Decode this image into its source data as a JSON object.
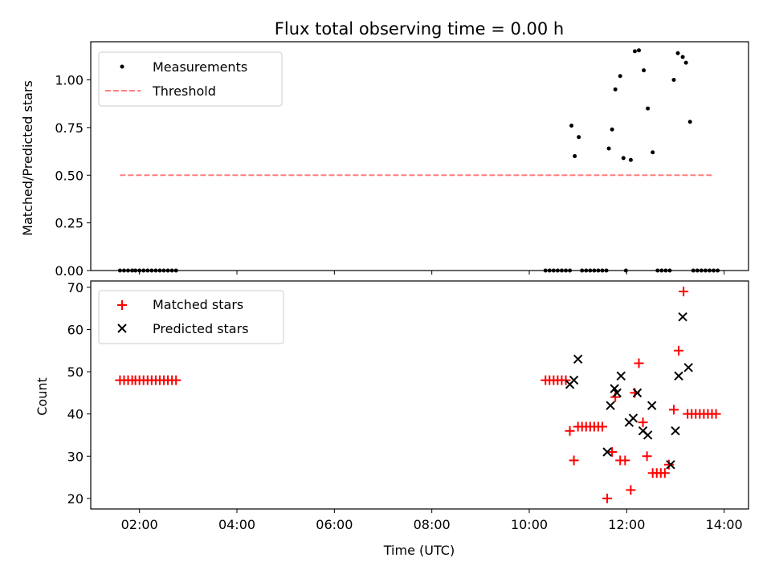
{
  "colors": {
    "measurement": "#000000",
    "threshold": "#ff7f7f",
    "matched": "#ff0000",
    "predicted": "#000000"
  },
  "chart_data": [
    {
      "type": "scatter",
      "title": "Flux total observing time = 0.00 h",
      "xlabel": "",
      "ylabel": "Matched/Predicted stars",
      "xlim": [
        "01:00",
        "14:30"
      ],
      "ylim": [
        0,
        1.2
      ],
      "y_ticks": [
        0.0,
        0.25,
        0.5,
        0.75,
        1.0
      ],
      "y_tick_labels": [
        "0.00",
        "0.25",
        "0.50",
        "0.75",
        "1.00"
      ],
      "grid": false,
      "legend_position": "top-left",
      "series": [
        {
          "name": "Measurements",
          "kind": "points",
          "points": [
            [
              "01:36",
              0
            ],
            [
              "01:41",
              0
            ],
            [
              "01:46",
              0
            ],
            [
              "01:51",
              0
            ],
            [
              "01:55",
              0
            ],
            [
              "02:00",
              0
            ],
            [
              "02:05",
              0
            ],
            [
              "02:10",
              0
            ],
            [
              "02:15",
              0
            ],
            [
              "02:20",
              0
            ],
            [
              "02:25",
              0
            ],
            [
              "02:30",
              0
            ],
            [
              "02:35",
              0
            ],
            [
              "02:40",
              0
            ],
            [
              "02:45",
              0
            ],
            [
              "10:20",
              0
            ],
            [
              "10:25",
              0
            ],
            [
              "10:30",
              0
            ],
            [
              "10:35",
              0
            ],
            [
              "10:40",
              0
            ],
            [
              "10:45",
              0
            ],
            [
              "10:50",
              0
            ],
            [
              "10:52",
              0.76
            ],
            [
              "10:56",
              0.6
            ],
            [
              "11:01",
              0.7
            ],
            [
              "11:05",
              0
            ],
            [
              "11:10",
              0
            ],
            [
              "11:15",
              0
            ],
            [
              "11:20",
              0
            ],
            [
              "11:25",
              0
            ],
            [
              "11:30",
              0
            ],
            [
              "11:35",
              0
            ],
            [
              "11:38",
              0.64
            ],
            [
              "11:42",
              0.74
            ],
            [
              "11:46",
              0.95
            ],
            [
              "11:52",
              1.02
            ],
            [
              "11:56",
              0.59
            ],
            [
              "11:59",
              0
            ],
            [
              "12:05",
              0.58
            ],
            [
              "12:10",
              1.15
            ],
            [
              "12:15",
              1.155
            ],
            [
              "12:21",
              1.05
            ],
            [
              "12:26",
              0.85
            ],
            [
              "12:32",
              0.62
            ],
            [
              "12:38",
              0
            ],
            [
              "12:43",
              0
            ],
            [
              "12:48",
              0
            ],
            [
              "12:53",
              0
            ],
            [
              "12:58",
              1.0
            ],
            [
              "13:03",
              1.14
            ],
            [
              "13:09",
              1.12
            ],
            [
              "13:13",
              1.09
            ],
            [
              "13:18",
              0.78
            ],
            [
              "13:22",
              0
            ],
            [
              "13:27",
              0
            ],
            [
              "13:32",
              0
            ],
            [
              "13:37",
              0
            ],
            [
              "13:42",
              0
            ],
            [
              "13:47",
              0
            ],
            [
              "13:52",
              0
            ]
          ]
        },
        {
          "name": "Threshold",
          "kind": "dashed-line",
          "points": [
            [
              "01:36",
              0.5
            ],
            [
              "13:47",
              0.5
            ]
          ]
        }
      ]
    },
    {
      "type": "scatter",
      "title": "",
      "xlabel": "Time (UTC)",
      "ylabel": "Count",
      "xlim": [
        "01:00",
        "14:30"
      ],
      "ylim": [
        17.5,
        71.5
      ],
      "y_ticks": [
        20,
        30,
        40,
        50,
        60,
        70
      ],
      "x_ticks": [
        "02:00",
        "04:00",
        "06:00",
        "08:00",
        "10:00",
        "12:00",
        "14:00"
      ],
      "grid": false,
      "legend_position": "top-left",
      "series": [
        {
          "name": "Matched stars",
          "kind": "plus",
          "points": [
            [
              "01:36",
              48
            ],
            [
              "01:41",
              48
            ],
            [
              "01:46",
              48
            ],
            [
              "01:51",
              48
            ],
            [
              "01:55",
              48
            ],
            [
              "02:00",
              48
            ],
            [
              "02:05",
              48
            ],
            [
              "02:10",
              48
            ],
            [
              "02:15",
              48
            ],
            [
              "02:20",
              48
            ],
            [
              "02:25",
              48
            ],
            [
              "02:30",
              48
            ],
            [
              "02:35",
              48
            ],
            [
              "02:40",
              48
            ],
            [
              "02:45",
              48
            ],
            [
              "10:20",
              48
            ],
            [
              "10:25",
              48
            ],
            [
              "10:30",
              48
            ],
            [
              "10:35",
              48
            ],
            [
              "10:40",
              48
            ],
            [
              "10:45",
              48
            ],
            [
              "10:50",
              36
            ],
            [
              "10:55",
              29
            ],
            [
              "11:00",
              37
            ],
            [
              "11:05",
              37
            ],
            [
              "11:10",
              37
            ],
            [
              "11:15",
              37
            ],
            [
              "11:20",
              37
            ],
            [
              "11:25",
              37
            ],
            [
              "11:30",
              37
            ],
            [
              "11:36",
              20
            ],
            [
              "11:42",
              31
            ],
            [
              "11:46",
              44
            ],
            [
              "11:52",
              29
            ],
            [
              "11:58",
              29
            ],
            [
              "12:05",
              22
            ],
            [
              "12:10",
              45
            ],
            [
              "12:15",
              52
            ],
            [
              "12:20",
              38
            ],
            [
              "12:25",
              30
            ],
            [
              "12:32",
              26
            ],
            [
              "12:37",
              26
            ],
            [
              "12:42",
              26
            ],
            [
              "12:47",
              26
            ],
            [
              "12:52",
              28
            ],
            [
              "12:58",
              41
            ],
            [
              "13:04",
              55
            ],
            [
              "13:10",
              69
            ],
            [
              "13:15",
              40
            ],
            [
              "13:20",
              40
            ],
            [
              "13:25",
              40
            ],
            [
              "13:30",
              40
            ],
            [
              "13:35",
              40
            ],
            [
              "13:40",
              40
            ],
            [
              "13:45",
              40
            ],
            [
              "13:50",
              40
            ]
          ]
        },
        {
          "name": "Predicted stars",
          "kind": "x",
          "points": [
            [
              "10:50",
              47
            ],
            [
              "10:55",
              48
            ],
            [
              "11:00",
              53
            ],
            [
              "11:36",
              31
            ],
            [
              "11:40",
              42
            ],
            [
              "11:45",
              46
            ],
            [
              "11:48",
              45
            ],
            [
              "11:53",
              49
            ],
            [
              "12:03",
              38
            ],
            [
              "12:08",
              39
            ],
            [
              "12:13",
              45
            ],
            [
              "12:20",
              36
            ],
            [
              "12:26",
              35
            ],
            [
              "12:31",
              42
            ],
            [
              "12:54",
              28
            ],
            [
              "13:00",
              36
            ],
            [
              "13:04",
              49
            ],
            [
              "13:09",
              63
            ],
            [
              "13:16",
              51
            ]
          ]
        }
      ]
    }
  ]
}
